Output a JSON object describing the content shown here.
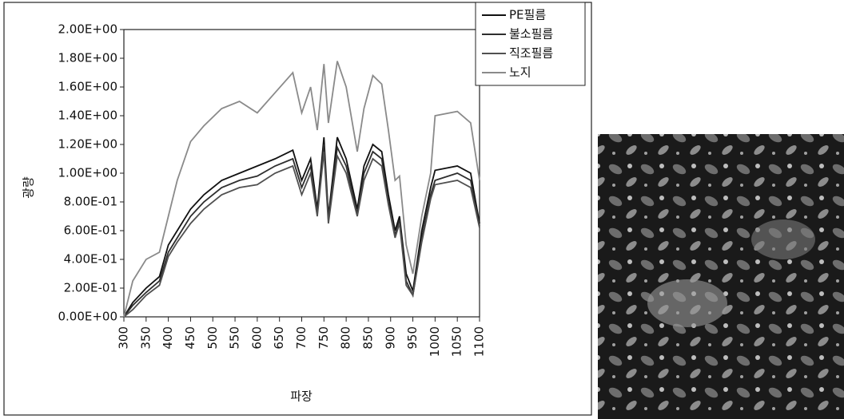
{
  "chart_data": {
    "type": "line",
    "x_label": "파장",
    "y_label": "광량",
    "x": [
      300,
      320,
      350,
      380,
      400,
      420,
      450,
      480,
      520,
      560,
      600,
      640,
      680,
      700,
      720,
      735,
      750,
      760,
      780,
      800,
      825,
      840,
      860,
      880,
      895,
      910,
      920,
      935,
      950,
      970,
      990,
      1000,
      1050,
      1080,
      1100
    ],
    "series": [
      {
        "name": "PE필름",
        "color": "#111111",
        "values": [
          0,
          0.1,
          0.2,
          0.28,
          0.5,
          0.6,
          0.75,
          0.85,
          0.95,
          1.0,
          1.05,
          1.1,
          1.16,
          0.95,
          1.1,
          0.75,
          1.25,
          0.7,
          1.25,
          1.1,
          0.75,
          1.05,
          1.2,
          1.15,
          0.85,
          0.6,
          0.7,
          0.3,
          0.18,
          0.6,
          0.9,
          1.02,
          1.05,
          1.0,
          0.65
        ]
      },
      {
        "name": "불소필름",
        "color": "#2e2e2e",
        "values": [
          0,
          0.08,
          0.17,
          0.25,
          0.45,
          0.55,
          0.7,
          0.8,
          0.9,
          0.95,
          0.98,
          1.05,
          1.1,
          0.9,
          1.05,
          0.72,
          1.2,
          0.68,
          1.18,
          1.05,
          0.72,
          1.0,
          1.15,
          1.1,
          0.8,
          0.57,
          0.67,
          0.25,
          0.15,
          0.55,
          0.85,
          0.95,
          1.0,
          0.95,
          0.63
        ]
      },
      {
        "name": "직조필름",
        "color": "#505050",
        "values": [
          0,
          0.05,
          0.15,
          0.22,
          0.42,
          0.52,
          0.65,
          0.75,
          0.85,
          0.9,
          0.92,
          1.0,
          1.05,
          0.85,
          1.0,
          0.7,
          1.15,
          0.65,
          1.12,
          1.0,
          0.7,
          0.95,
          1.1,
          1.05,
          0.78,
          0.55,
          0.65,
          0.22,
          0.15,
          0.52,
          0.82,
          0.92,
          0.95,
          0.9,
          0.62
        ]
      },
      {
        "name": "노지",
        "color": "#8a8a8a",
        "values": [
          0,
          0.25,
          0.4,
          0.45,
          0.7,
          0.95,
          1.22,
          1.33,
          1.45,
          1.5,
          1.42,
          1.56,
          1.7,
          1.42,
          1.6,
          1.3,
          1.76,
          1.35,
          1.78,
          1.6,
          1.15,
          1.45,
          1.68,
          1.62,
          1.3,
          0.95,
          0.98,
          0.5,
          0.3,
          0.7,
          1.0,
          1.4,
          1.43,
          1.35,
          0.95
        ]
      }
    ],
    "xlim": [
      300,
      1100
    ],
    "xticks": [
      300,
      350,
      400,
      450,
      500,
      550,
      600,
      650,
      700,
      750,
      800,
      850,
      900,
      950,
      1000,
      1050,
      1100
    ],
    "ylim": [
      0,
      2
    ],
    "yticks": [
      {
        "value": 0,
        "label": "0.00E+00"
      },
      {
        "value": 0.2,
        "label": "2.00E-01"
      },
      {
        "value": 0.4,
        "label": "4.00E-01"
      },
      {
        "value": 0.6,
        "label": "6.00E-01"
      },
      {
        "value": 0.8,
        "label": "8.00E-01"
      },
      {
        "value": 1.0,
        "label": "1.00E+00"
      },
      {
        "value": 1.2,
        "label": "1.20E+00"
      },
      {
        "value": 1.4,
        "label": "1.40E+00"
      },
      {
        "value": 1.6,
        "label": "1.60E+00"
      },
      {
        "value": 1.8,
        "label": "1.80E+00"
      },
      {
        "value": 2.0,
        "label": "2.00E+00"
      }
    ],
    "legend": "upper right"
  }
}
